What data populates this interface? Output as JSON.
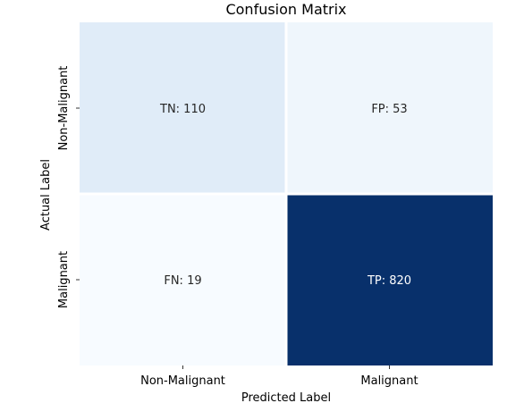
{
  "chart_data": {
    "type": "heatmap",
    "title": "Confusion Matrix",
    "xlabel": "Predicted Label",
    "ylabel": "Actual Label",
    "x_categories": [
      "Non-Malignant",
      "Malignant"
    ],
    "y_categories": [
      "Non-Malignant",
      "Malignant"
    ],
    "values": [
      [
        110,
        53
      ],
      [
        19,
        820
      ]
    ],
    "annotations": [
      [
        "TN: 110",
        "FP: 53"
      ],
      [
        "FN: 19",
        "TP: 820"
      ]
    ],
    "colormap": "Blues",
    "colorbar": false,
    "grid": false
  }
}
